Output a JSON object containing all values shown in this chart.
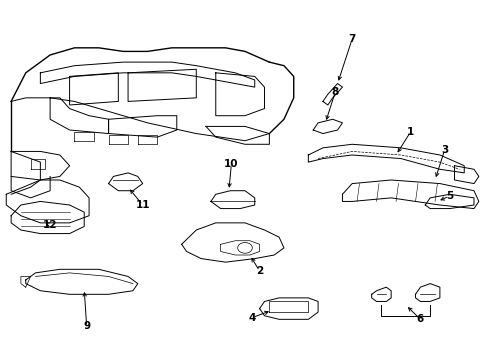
{
  "background": "#ffffff",
  "line_color": "#000000",
  "fig_width": 4.9,
  "fig_height": 3.6,
  "dpi": 100
}
